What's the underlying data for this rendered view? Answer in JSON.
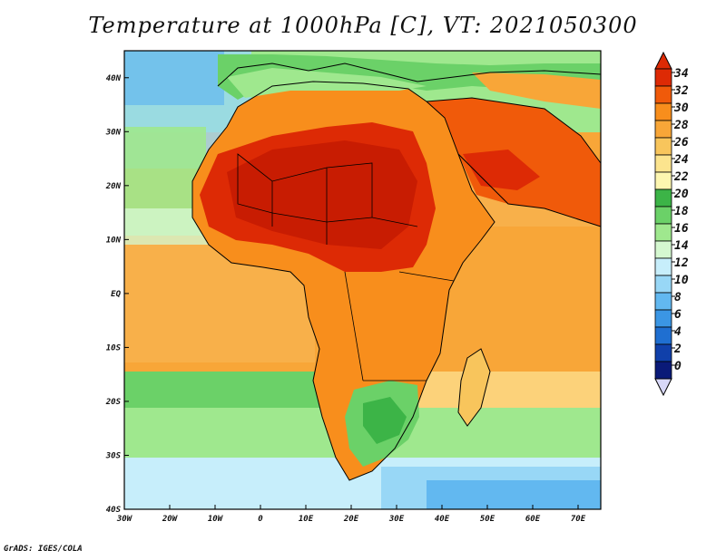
{
  "title": "Temperature at 1000hPa [C], VT: 2021050300",
  "credit": "GrADS: IGES/COLA",
  "map": {
    "lon_range": [
      -30,
      75
    ],
    "lat_range": [
      -40,
      45
    ],
    "x_ticks": [
      "30W",
      "20W",
      "10W",
      "0",
      "10E",
      "20E",
      "30E",
      "40E",
      "50E",
      "60E",
      "70E"
    ],
    "y_ticks": [
      "40N",
      "30N",
      "20N",
      "10N",
      "EQ",
      "10S",
      "20S",
      "30S",
      "40S"
    ],
    "region": "Africa"
  },
  "colorbar": {
    "labels": [
      "34",
      "32",
      "30",
      "28",
      "26",
      "24",
      "22",
      "20",
      "18",
      "16",
      "14",
      "12",
      "10",
      "8",
      "6",
      "4",
      "2",
      "0"
    ],
    "colors": [
      "#dd2a05",
      "#f05a0a",
      "#f88e1c",
      "#f8a638",
      "#f8c55c",
      "#fce48e",
      "#fdf6b0",
      "#3cb447",
      "#6bd168",
      "#9fe88e",
      "#d5f8d0",
      "#c7eefb",
      "#98d7f6",
      "#62b8f0",
      "#3b96e4",
      "#1f6fd1",
      "#1040aa",
      "#0a1a78"
    ]
  }
}
